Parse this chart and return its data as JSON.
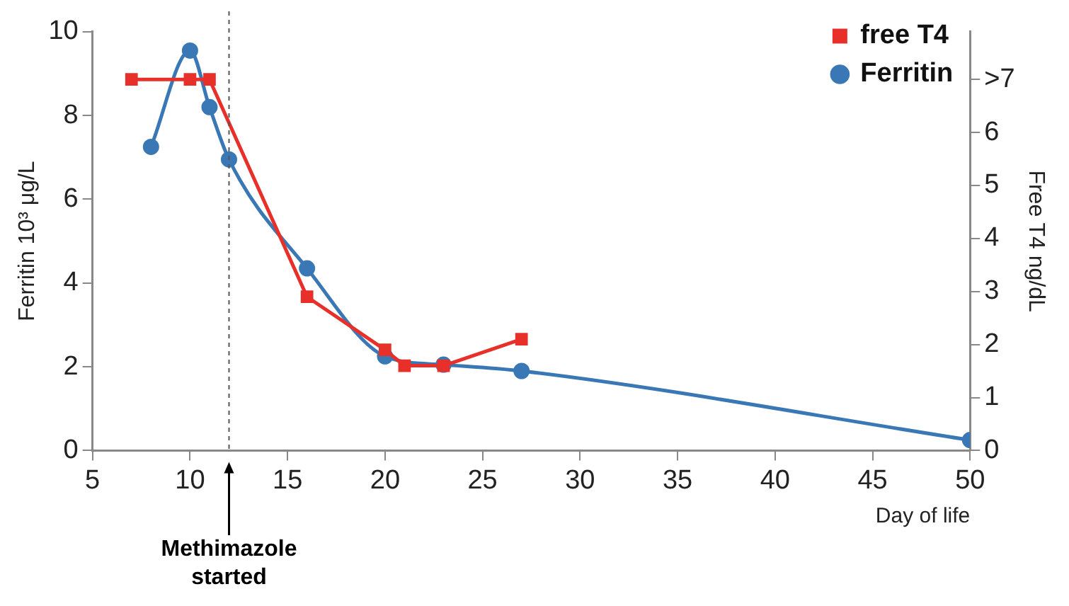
{
  "chart_data": {
    "type": "line",
    "xlabel": "Day of life",
    "ylabel": "Ferritin 10³ μg/L",
    "y2label": "Free T4 ng/dL",
    "xlim": [
      5,
      50
    ],
    "xticks": [
      5,
      10,
      15,
      20,
      25,
      30,
      35,
      40,
      45,
      50
    ],
    "ylim": [
      0,
      10
    ],
    "yticks": [
      0,
      2,
      4,
      6,
      8,
      10
    ],
    "y2lim": [
      0,
      7.9
    ],
    "y2ticks": [
      0,
      1,
      2,
      3,
      4,
      5,
      6,
      {
        "value": 7,
        "label": ">7"
      }
    ],
    "series": [
      {
        "name": "Ferritin",
        "color": "#3a78b5",
        "x": [
          8,
          10,
          11,
          12,
          16,
          20,
          23,
          27,
          50
        ],
        "values": [
          7.25,
          9.55,
          8.2,
          6.95,
          4.35,
          2.25,
          2.05,
          1.9,
          0.25
        ],
        "marker": "circle"
      },
      {
        "name": "free T4",
        "color": "#e8302a",
        "axis": "y2",
        "x": [
          7,
          10,
          11,
          16,
          20,
          21,
          23,
          27
        ],
        "values": [
          7,
          7,
          7,
          2.9,
          1.9,
          1.6,
          1.6,
          2.1
        ],
        "marker": "square"
      }
    ],
    "ref_lines": [
      {
        "axis": "x",
        "value": 12,
        "line_style": "dashed",
        "color": "#555555"
      }
    ],
    "annotations": [
      "Methimazole started"
    ],
    "grid": false,
    "legend": "top right"
  }
}
